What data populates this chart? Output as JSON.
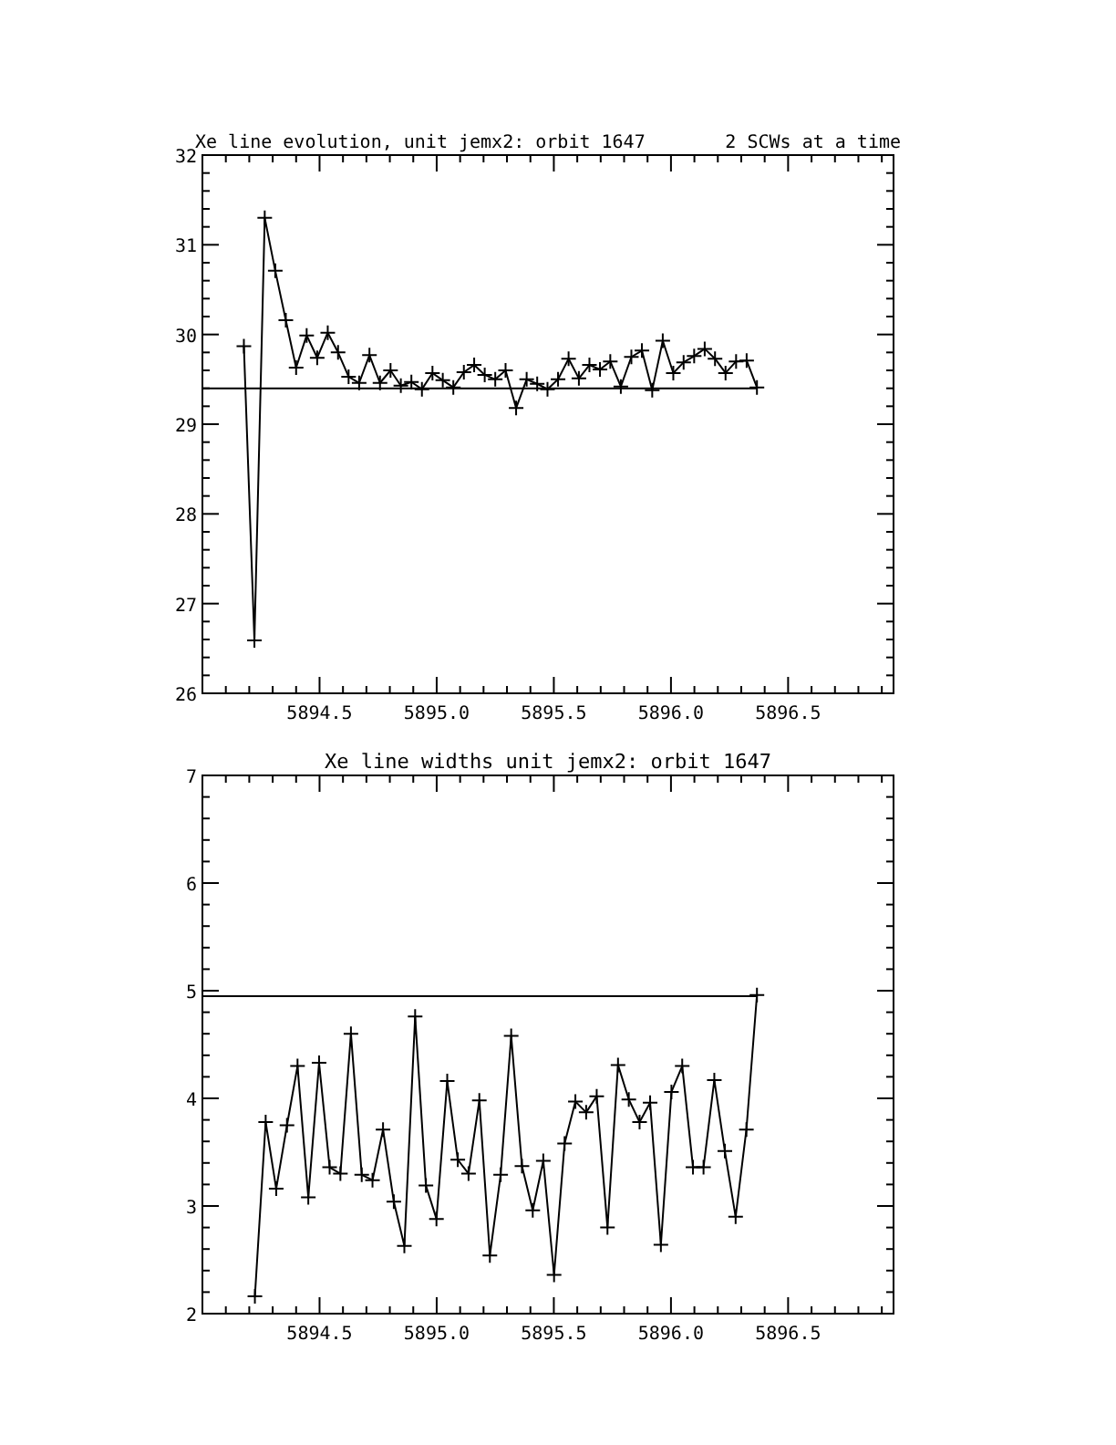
{
  "chart_data": [
    {
      "type": "line",
      "title": "Xe line evolution, unit jemx2: orbit 1647",
      "subtitle": "2 SCWs at a time",
      "marker": "cross",
      "line_style": "solid",
      "grid": false,
      "xlim": [
        5894.0,
        5896.95
      ],
      "xticks": [
        {
          "value": 5894.1,
          "label": null
        },
        {
          "value": 5894.2,
          "label": null
        },
        {
          "value": 5894.3,
          "label": null
        },
        {
          "value": 5894.4,
          "label": null
        },
        5894.5,
        {
          "value": 5894.6,
          "label": null
        },
        {
          "value": 5894.7,
          "label": null
        },
        {
          "value": 5894.8,
          "label": null
        },
        {
          "value": 5894.9,
          "label": null
        },
        {
          "value": 5895,
          "label": "5895.0"
        },
        {
          "value": 5895.1,
          "label": null
        },
        {
          "value": 5895.2,
          "label": null
        },
        {
          "value": 5895.3,
          "label": null
        },
        {
          "value": 5895.4,
          "label": null
        },
        5895.5,
        {
          "value": 5895.6,
          "label": null
        },
        {
          "value": 5895.7,
          "label": null
        },
        {
          "value": 5895.8,
          "label": null
        },
        {
          "value": 5895.9,
          "label": null
        },
        {
          "value": 5896,
          "label": "5896.0"
        },
        {
          "value": 5896.1,
          "label": null
        },
        {
          "value": 5896.2,
          "label": null
        },
        {
          "value": 5896.3,
          "label": null
        },
        {
          "value": 5896.4,
          "label": null
        },
        5896.5,
        {
          "value": 5896.6,
          "label": null
        },
        {
          "value": 5896.7,
          "label": null
        },
        {
          "value": 5896.8,
          "label": null
        },
        {
          "value": 5896.9,
          "label": null
        }
      ],
      "ylim": [
        26,
        32
      ],
      "yticks": [
        26,
        {
          "value": 26.2,
          "label": null
        },
        {
          "value": 26.4,
          "label": null
        },
        {
          "value": 26.6,
          "label": null
        },
        {
          "value": 26.8,
          "label": null
        },
        27,
        {
          "value": 27.2,
          "label": null
        },
        {
          "value": 27.4,
          "label": null
        },
        {
          "value": 27.6,
          "label": null
        },
        {
          "value": 27.8,
          "label": null
        },
        28,
        {
          "value": 28.2,
          "label": null
        },
        {
          "value": 28.4,
          "label": null
        },
        {
          "value": 28.6,
          "label": null
        },
        {
          "value": 28.8,
          "label": null
        },
        29,
        {
          "value": 29.2,
          "label": null
        },
        {
          "value": 29.4,
          "label": null
        },
        {
          "value": 29.6,
          "label": null
        },
        {
          "value": 29.8,
          "label": null
        },
        30,
        {
          "value": 30.2,
          "label": null
        },
        {
          "value": 30.4,
          "label": null
        },
        {
          "value": 30.6,
          "label": null
        },
        {
          "value": 30.8,
          "label": null
        },
        31,
        {
          "value": 31.2,
          "label": null
        },
        {
          "value": 31.4,
          "label": null
        },
        {
          "value": 31.6,
          "label": null
        },
        {
          "value": 31.8,
          "label": null
        },
        32
      ],
      "series": [
        {
          "color": "#000000",
          "x": [
            5894.177,
            5894.222,
            5894.266,
            5894.311,
            5894.356,
            5894.4,
            5894.445,
            5894.49,
            5894.535,
            5894.579,
            5894.624,
            5894.669,
            5894.713,
            5894.758,
            5894.803,
            5894.847,
            5894.892,
            5894.937,
            5894.982,
            5895.026,
            5895.071,
            5895.116,
            5895.16,
            5895.205,
            5895.25,
            5895.294,
            5895.339,
            5895.384,
            5895.429,
            5895.473,
            5895.518,
            5895.563,
            5895.607,
            5895.652,
            5895.697,
            5895.741,
            5895.786,
            5895.831,
            5895.876,
            5895.92,
            5895.965,
            5896.01,
            5896.054,
            5896.099,
            5896.144,
            5896.188,
            5896.233,
            5896.278,
            5896.323,
            5896.367
          ],
          "values": [
            29.87,
            26.59,
            31.3,
            30.71,
            30.16,
            29.63,
            29.99,
            29.74,
            30.02,
            29.8,
            29.53,
            29.46,
            29.77,
            29.46,
            29.6,
            29.43,
            29.47,
            29.39,
            29.57,
            29.49,
            29.41,
            29.58,
            29.66,
            29.55,
            29.5,
            29.6,
            29.18,
            29.5,
            29.45,
            29.39,
            29.5,
            29.73,
            29.51,
            29.66,
            29.61,
            29.7,
            29.42,
            29.75,
            29.82,
            29.38,
            29.93,
            29.57,
            29.69,
            29.76,
            29.84,
            29.73,
            29.57,
            29.7,
            29.71,
            29.41
          ]
        },
        {
          "type": "line",
          "marker": "none",
          "color": "#000000",
          "x": [
            5894.0,
            5896.367
          ],
          "values": [
            29.4,
            29.4
          ]
        }
      ]
    },
    {
      "type": "line",
      "title": "Xe line widths unit jemx2: orbit 1647",
      "marker": "cross",
      "line_style": "solid",
      "grid": false,
      "xlim": [
        5894.0,
        5896.95
      ],
      "xticks": [
        {
          "value": 5894.1,
          "label": null
        },
        {
          "value": 5894.2,
          "label": null
        },
        {
          "value": 5894.3,
          "label": null
        },
        {
          "value": 5894.4,
          "label": null
        },
        5894.5,
        {
          "value": 5894.6,
          "label": null
        },
        {
          "value": 5894.7,
          "label": null
        },
        {
          "value": 5894.8,
          "label": null
        },
        {
          "value": 5894.9,
          "label": null
        },
        {
          "value": 5895,
          "label": "5895.0"
        },
        {
          "value": 5895.1,
          "label": null
        },
        {
          "value": 5895.2,
          "label": null
        },
        {
          "value": 5895.3,
          "label": null
        },
        {
          "value": 5895.4,
          "label": null
        },
        5895.5,
        {
          "value": 5895.6,
          "label": null
        },
        {
          "value": 5895.7,
          "label": null
        },
        {
          "value": 5895.8,
          "label": null
        },
        {
          "value": 5895.9,
          "label": null
        },
        {
          "value": 5896,
          "label": "5896.0"
        },
        {
          "value": 5896.1,
          "label": null
        },
        {
          "value": 5896.2,
          "label": null
        },
        {
          "value": 5896.3,
          "label": null
        },
        {
          "value": 5896.4,
          "label": null
        },
        5896.5,
        {
          "value": 5896.6,
          "label": null
        },
        {
          "value": 5896.7,
          "label": null
        },
        {
          "value": 5896.8,
          "label": null
        },
        {
          "value": 5896.9,
          "label": null
        }
      ],
      "ylim": [
        2,
        7
      ],
      "yticks": [
        2,
        {
          "value": 2.2,
          "label": null
        },
        {
          "value": 2.4,
          "label": null
        },
        {
          "value": 2.6,
          "label": null
        },
        {
          "value": 2.8,
          "label": null
        },
        3,
        {
          "value": 3.2,
          "label": null
        },
        {
          "value": 3.4,
          "label": null
        },
        {
          "value": 3.6,
          "label": null
        },
        {
          "value": 3.8,
          "label": null
        },
        4,
        {
          "value": 4.2,
          "label": null
        },
        {
          "value": 4.4,
          "label": null
        },
        {
          "value": 4.6,
          "label": null
        },
        {
          "value": 4.8,
          "label": null
        },
        5,
        {
          "value": 5.2,
          "label": null
        },
        {
          "value": 5.4,
          "label": null
        },
        {
          "value": 5.6,
          "label": null
        },
        {
          "value": 5.8,
          "label": null
        },
        6,
        {
          "value": 6.2,
          "label": null
        },
        {
          "value": 6.4,
          "label": null
        },
        {
          "value": 6.6,
          "label": null
        },
        {
          "value": 6.8,
          "label": null
        },
        7
      ],
      "series": [
        {
          "color": "#000000",
          "x": [
            5894.224,
            5894.27,
            5894.315,
            5894.361,
            5894.406,
            5894.452,
            5894.498,
            5894.543,
            5894.589,
            5894.634,
            5894.68,
            5894.726,
            5894.771,
            5894.817,
            5894.862,
            5894.908,
            5894.954,
            5894.999,
            5895.045,
            5895.09,
            5895.136,
            5895.182,
            5895.227,
            5895.273,
            5895.318,
            5895.364,
            5895.41,
            5895.455,
            5895.501,
            5895.546,
            5895.592,
            5895.638,
            5895.683,
            5895.729,
            5895.774,
            5895.82,
            5895.866,
            5895.911,
            5895.957,
            5896.002,
            5896.048,
            5896.094,
            5896.139,
            5896.185,
            5896.23,
            5896.276,
            5896.322,
            5896.367
          ],
          "values": [
            2.16,
            3.78,
            3.16,
            3.75,
            4.3,
            3.08,
            4.33,
            3.36,
            3.3,
            4.6,
            3.29,
            3.24,
            3.71,
            3.04,
            2.63,
            4.76,
            3.19,
            2.88,
            4.16,
            3.43,
            3.3,
            3.98,
            2.54,
            3.29,
            4.58,
            3.37,
            2.96,
            3.42,
            2.36,
            3.58,
            3.97,
            3.87,
            4.02,
            2.8,
            4.31,
            3.99,
            3.78,
            3.96,
            2.64,
            4.06,
            4.3,
            3.36,
            3.36,
            4.17,
            3.51,
            2.9,
            3.71,
            4.96
          ]
        },
        {
          "type": "line",
          "marker": "none",
          "color": "#000000",
          "x": [
            5894.0,
            5896.367
          ],
          "values": [
            4.95,
            4.95
          ]
        }
      ]
    }
  ]
}
